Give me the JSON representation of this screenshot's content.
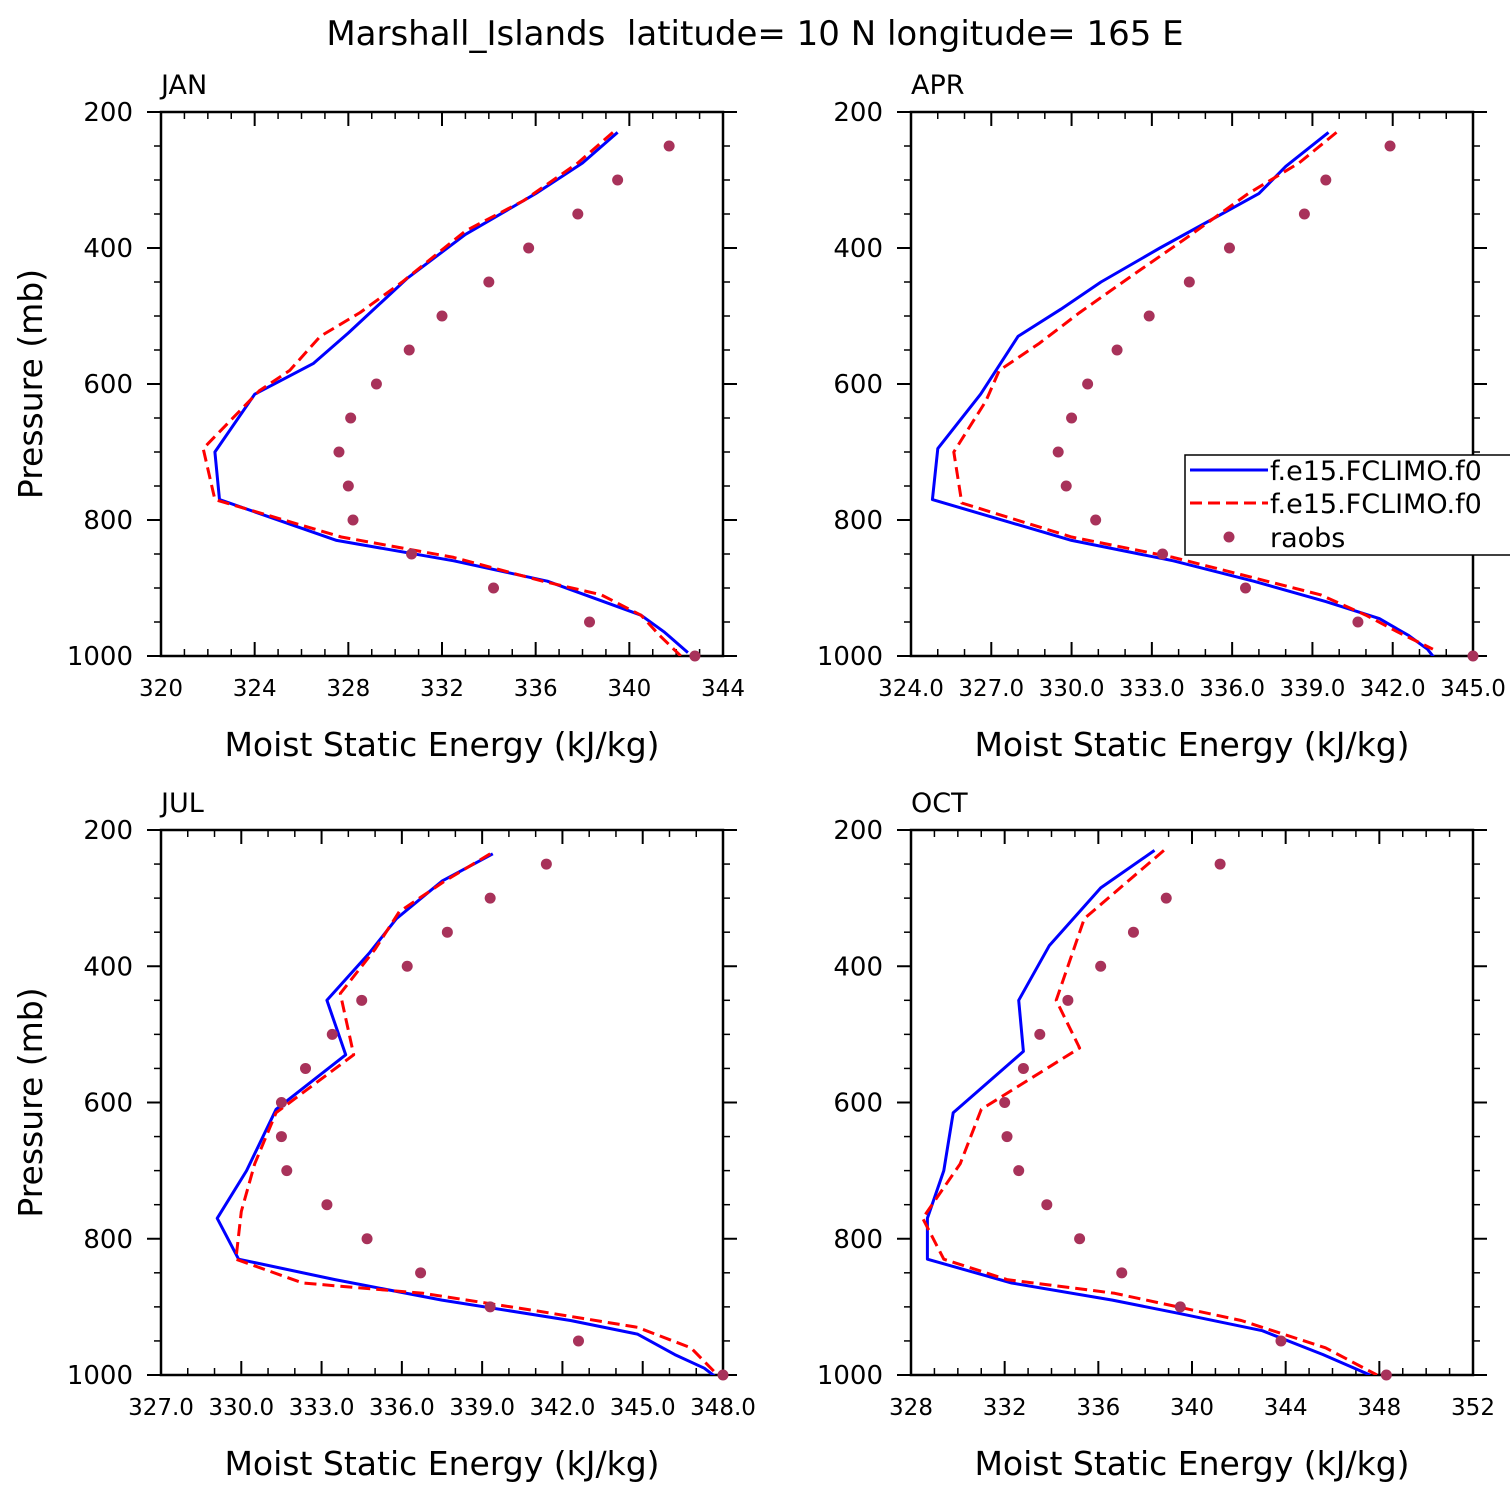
{
  "title": "Marshall_Islands  latitude= 10 N longitude= 165 E",
  "colors": {
    "model1": "#0000ff",
    "model2": "#ff0000",
    "raobs": "#a8325a"
  },
  "legend": {
    "placement": "inside-right of APR panel",
    "entries": [
      "f.e15.FCLIMO.f0",
      "f.e15.FCLIMO.f0",
      "raobs"
    ]
  },
  "chart_data": [
    {
      "type": "line",
      "panel_label": "JAN",
      "xlabel": "Moist Static Energy (kJ/kg)",
      "ylabel": "Pressure (mb)",
      "xlim": [
        320,
        344
      ],
      "ylim": [
        1000,
        200
      ],
      "x_ticks": [
        "320",
        "324",
        "328",
        "332",
        "336",
        "340",
        "344"
      ],
      "y_ticks": [
        "200",
        "400",
        "600",
        "800",
        "1000"
      ],
      "series": [
        {
          "style": "solid",
          "points": [
            [
              339.5,
              230
            ],
            [
              338,
              275
            ],
            [
              336,
              320
            ],
            [
              333,
              380
            ],
            [
              330.5,
              445
            ],
            [
              328,
              525
            ],
            [
              326.5,
              570
            ],
            [
              324,
              615
            ],
            [
              322.3,
              700
            ],
            [
              322.3,
              700
            ],
            [
              322.5,
              770
            ],
            [
              327.5,
              830
            ],
            [
              332.5,
              860
            ],
            [
              336.5,
              890
            ],
            [
              338.5,
              915
            ],
            [
              340.5,
              940
            ],
            [
              341.5,
              965
            ],
            [
              342.5,
              995
            ]
          ]
        },
        {
          "style": "dashed",
          "points": [
            [
              339.3,
              230
            ],
            [
              337.8,
              275
            ],
            [
              335.5,
              330
            ],
            [
              333,
              375
            ],
            [
              330.3,
              450
            ],
            [
              328.5,
              495
            ],
            [
              326.8,
              530
            ],
            [
              325.5,
              580
            ],
            [
              324.2,
              610
            ],
            [
              321.8,
              695
            ],
            [
              322.3,
              770
            ],
            [
              327.7,
              825
            ],
            [
              332.5,
              855
            ],
            [
              336.3,
              890
            ],
            [
              338.8,
              910
            ],
            [
              340.5,
              940
            ],
            [
              341.3,
              970
            ],
            [
              342.2,
              1000
            ]
          ]
        },
        {
          "style": "dots",
          "points": [
            [
              341.7,
              250
            ],
            [
              339.5,
              300
            ],
            [
              337.8,
              350
            ],
            [
              335.7,
              400
            ],
            [
              334,
              450
            ],
            [
              332,
              500
            ],
            [
              330.6,
              550
            ],
            [
              329.2,
              600
            ],
            [
              328.1,
              650
            ],
            [
              327.6,
              700
            ],
            [
              328,
              750
            ],
            [
              328.2,
              800
            ],
            [
              330.7,
              850
            ],
            [
              334.2,
              900
            ],
            [
              338.3,
              950
            ],
            [
              342.8,
              1000
            ]
          ]
        }
      ]
    },
    {
      "type": "line",
      "panel_label": "APR",
      "xlabel": "Moist Static Energy (kJ/kg)",
      "ylabel": "",
      "xlim": [
        324,
        345
      ],
      "ylim": [
        1000,
        200
      ],
      "x_ticks": [
        "324.0",
        "327.0",
        "330.0",
        "333.0",
        "336.0",
        "339.0",
        "342.0",
        "345.0"
      ],
      "y_ticks": [
        "200",
        "400",
        "600",
        "800",
        "1000"
      ],
      "series": [
        {
          "style": "solid",
          "points": [
            [
              339.6,
              230
            ],
            [
              338,
              280
            ],
            [
              337,
              320
            ],
            [
              333.3,
              400
            ],
            [
              331.1,
              450
            ],
            [
              329.6,
              490
            ],
            [
              328,
              530
            ],
            [
              326.6,
              615
            ],
            [
              325,
              695
            ],
            [
              324.8,
              770
            ],
            [
              330,
              830
            ],
            [
              333.8,
              860
            ],
            [
              336.8,
              890
            ],
            [
              339.5,
              920
            ],
            [
              341.5,
              945
            ],
            [
              342.6,
              970
            ],
            [
              343.3,
              990
            ],
            [
              343.6,
              1005
            ]
          ]
        },
        {
          "style": "dashed",
          "points": [
            [
              339.9,
              230
            ],
            [
              338.5,
              275
            ],
            [
              336.6,
              320
            ],
            [
              334.3,
              385
            ],
            [
              332.1,
              445
            ],
            [
              330.3,
              495
            ],
            [
              328.8,
              540
            ],
            [
              327.3,
              580
            ],
            [
              326.8,
              625
            ],
            [
              325.6,
              700
            ],
            [
              325.9,
              775
            ],
            [
              330,
              825
            ],
            [
              333.8,
              855
            ],
            [
              336.8,
              885
            ],
            [
              339.3,
              910
            ],
            [
              341,
              940
            ],
            [
              342.2,
              965
            ],
            [
              343.5,
              990
            ]
          ]
        },
        {
          "style": "dots",
          "points": [
            [
              341.9,
              250
            ],
            [
              339.5,
              300
            ],
            [
              338.7,
              350
            ],
            [
              335.9,
              400
            ],
            [
              334.4,
              450
            ],
            [
              332.9,
              500
            ],
            [
              331.7,
              550
            ],
            [
              330.6,
              600
            ],
            [
              330.0,
              650
            ],
            [
              329.5,
              700
            ],
            [
              329.8,
              750
            ],
            [
              330.9,
              800
            ],
            [
              333.4,
              850
            ],
            [
              336.5,
              900
            ],
            [
              340.7,
              950
            ],
            [
              345,
              1000
            ]
          ]
        }
      ]
    },
    {
      "type": "line",
      "panel_label": "JUL",
      "xlabel": "Moist Static Energy (kJ/kg)",
      "ylabel": "Pressure (mb)",
      "xlim": [
        327,
        348
      ],
      "ylim": [
        1000,
        200
      ],
      "x_ticks": [
        "327.0",
        "330.0",
        "333.0",
        "336.0",
        "339.0",
        "342.0",
        "345.0",
        "348.0"
      ],
      "y_ticks": [
        "200",
        "400",
        "600",
        "800",
        "1000"
      ],
      "series": [
        {
          "style": "solid",
          "points": [
            [
              339.4,
              235
            ],
            [
              337.5,
              275
            ],
            [
              335.8,
              330
            ],
            [
              334.8,
              380
            ],
            [
              333.2,
              450
            ],
            [
              333.9,
              530
            ],
            [
              331.3,
              610
            ],
            [
              330.2,
              700
            ],
            [
              329.1,
              770
            ],
            [
              329.9,
              830
            ],
            [
              333.5,
              860
            ],
            [
              337.5,
              890
            ],
            [
              342.3,
              920
            ],
            [
              344.8,
              940
            ],
            [
              346.2,
              970
            ],
            [
              347.3,
              990
            ],
            [
              347.8,
              1005
            ]
          ]
        },
        {
          "style": "dashed",
          "points": [
            [
              339.3,
              235
            ],
            [
              337.6,
              275
            ],
            [
              335.9,
              320
            ],
            [
              335,
              375
            ],
            [
              333.7,
              440
            ],
            [
              334.2,
              530
            ],
            [
              331.3,
              615
            ],
            [
              330.5,
              690
            ],
            [
              330,
              760
            ],
            [
              329.8,
              830
            ],
            [
              332.3,
              865
            ],
            [
              336.8,
              880
            ],
            [
              340.9,
              905
            ],
            [
              344.8,
              930
            ],
            [
              346.8,
              960
            ],
            [
              347.8,
              1000
            ]
          ]
        },
        {
          "style": "dots",
          "points": [
            [
              341.4,
              250
            ],
            [
              339.3,
              300
            ],
            [
              337.7,
              350
            ],
            [
              336.2,
              400
            ],
            [
              334.5,
              450
            ],
            [
              333.4,
              500
            ],
            [
              332.4,
              550
            ],
            [
              331.5,
              600
            ],
            [
              331.5,
              650
            ],
            [
              331.7,
              700
            ],
            [
              333.2,
              750
            ],
            [
              334.7,
              800
            ],
            [
              336.7,
              850
            ],
            [
              339.3,
              900
            ],
            [
              342.6,
              950
            ],
            [
              348,
              1000
            ]
          ]
        }
      ]
    },
    {
      "type": "line",
      "panel_label": "OCT",
      "xlabel": "Moist Static Energy (kJ/kg)",
      "ylabel": "",
      "xlim": [
        328,
        352
      ],
      "ylim": [
        1000,
        200
      ],
      "x_ticks": [
        "328",
        "332",
        "336",
        "340",
        "344",
        "348",
        "352"
      ],
      "y_ticks": [
        "200",
        "400",
        "600",
        "800",
        "1000"
      ],
      "series": [
        {
          "style": "solid",
          "points": [
            [
              338.4,
              230
            ],
            [
              336.1,
              285
            ],
            [
              333.9,
              370
            ],
            [
              332.6,
              450
            ],
            [
              332.8,
              525
            ],
            [
              329.8,
              615
            ],
            [
              329.4,
              700
            ],
            [
              328.7,
              770
            ],
            [
              328.7,
              830
            ],
            [
              332.3,
              865
            ],
            [
              336.6,
              890
            ],
            [
              339.5,
              910
            ],
            [
              343,
              935
            ],
            [
              345.6,
              970
            ],
            [
              347.6,
              1000
            ]
          ]
        },
        {
          "style": "dashed",
          "points": [
            [
              338.8,
              230
            ],
            [
              337.1,
              280
            ],
            [
              335.4,
              330
            ],
            [
              334.2,
              450
            ],
            [
              335.2,
              520
            ],
            [
              331,
              610
            ],
            [
              330.1,
              690
            ],
            [
              328.5,
              770
            ],
            [
              329.4,
              830
            ],
            [
              332.1,
              860
            ],
            [
              336.7,
              880
            ],
            [
              339.4,
              900
            ],
            [
              342.1,
              920
            ],
            [
              345.7,
              960
            ],
            [
              347.9,
              1000
            ]
          ]
        },
        {
          "style": "dots",
          "points": [
            [
              341.2,
              250
            ],
            [
              338.9,
              300
            ],
            [
              337.5,
              350
            ],
            [
              336.1,
              400
            ],
            [
              334.7,
              450
            ],
            [
              333.5,
              500
            ],
            [
              332.8,
              550
            ],
            [
              332,
              600
            ],
            [
              332.1,
              650
            ],
            [
              332.6,
              700
            ],
            [
              333.8,
              750
            ],
            [
              335.2,
              800
            ],
            [
              337,
              850
            ],
            [
              339.5,
              900
            ],
            [
              343.8,
              950
            ],
            [
              348.3,
              1000
            ]
          ]
        }
      ]
    }
  ]
}
